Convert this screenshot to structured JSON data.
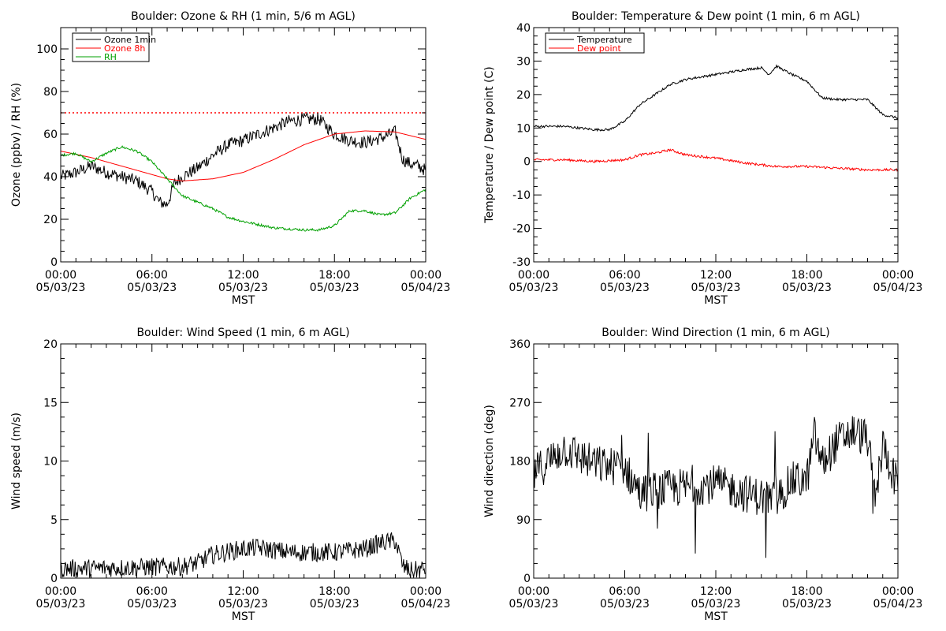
{
  "chart_data": [
    {
      "type": "line",
      "title": "Boulder: Ozone & RH (1 min, 5/6 m AGL)",
      "xlabel": "MST",
      "ylabel": "Ozone (ppbv) / RH (%)",
      "xlim": [
        "05/03/23 00:00",
        "05/04/23 00:00"
      ],
      "ylim": [
        0,
        110
      ],
      "yticks": [
        0,
        20,
        40,
        60,
        80,
        100
      ],
      "xticks": [
        {
          "time": "00:00",
          "date": "05/03/23"
        },
        {
          "time": "06:00",
          "date": "05/03/23"
        },
        {
          "time": "12:00",
          "date": "05/03/23"
        },
        {
          "time": "18:00",
          "date": "05/03/23"
        },
        {
          "time": "00:00",
          "date": "05/04/23"
        }
      ],
      "legend": {
        "placement": "top-left"
      },
      "reference_lines": [
        {
          "y": 70,
          "color": "#ff0000",
          "style": "dotted"
        }
      ],
      "series": [
        {
          "name": "Ozone 1min",
          "color": "#000000",
          "noise": 3,
          "x": [
            "05/03/23 00:00",
            "05/03/23 01:00",
            "05/03/23 02:00",
            "05/03/23 03:00",
            "05/03/23 04:00",
            "05/03/23 05:00",
            "05/03/23 06:00",
            "05/03/23 06:30",
            "05/03/23 07:00",
            "05/03/23 07:30",
            "05/03/23 08:00",
            "05/03/23 09:00",
            "05/03/23 10:00",
            "05/03/23 11:00",
            "05/03/23 12:00",
            "05/03/23 13:00",
            "05/03/23 14:00",
            "05/03/23 15:00",
            "05/03/23 16:00",
            "05/03/23 17:00",
            "05/03/23 18:00",
            "05/03/23 19:00",
            "05/03/23 20:00",
            "05/03/23 21:00",
            "05/03/23 22:00",
            "05/03/23 22:30",
            "05/03/23 23:00",
            "05/03/23 23:30",
            "05/04/23 00:00"
          ],
          "y": [
            40,
            42,
            45,
            42,
            40,
            38,
            33,
            28,
            27,
            37,
            40,
            44,
            50,
            55,
            57,
            60,
            63,
            66,
            67,
            67,
            60,
            57,
            56,
            58,
            61,
            48,
            46,
            45,
            43
          ]
        },
        {
          "name": "Ozone 8h",
          "color": "#ff0000",
          "noise": 0,
          "x": [
            "05/03/23 00:00",
            "05/03/23 02:00",
            "05/03/23 04:00",
            "05/03/23 06:00",
            "05/03/23 07:00",
            "05/03/23 08:00",
            "05/03/23 10:00",
            "05/03/23 12:00",
            "05/03/23 14:00",
            "05/03/23 16:00",
            "05/03/23 18:00",
            "05/03/23 20:00",
            "05/03/23 22:00",
            "05/04/23 00:00"
          ],
          "y": [
            52,
            49,
            45,
            41,
            39,
            38,
            39,
            42,
            48,
            55,
            60,
            61.5,
            61,
            57.5
          ]
        },
        {
          "name": "RH",
          "color": "#00a000",
          "noise": 0.6,
          "x": [
            "05/03/23 00:00",
            "05/03/23 01:00",
            "05/03/23 02:00",
            "05/03/23 03:00",
            "05/03/23 04:00",
            "05/03/23 05:00",
            "05/03/23 06:00",
            "05/03/23 07:00",
            "05/03/23 08:00",
            "05/03/23 09:00",
            "05/03/23 10:00",
            "05/03/23 11:00",
            "05/03/23 12:00",
            "05/03/23 14:00",
            "05/03/23 16:00",
            "05/03/23 17:00",
            "05/03/23 18:00",
            "05/03/23 19:00",
            "05/03/23 20:00",
            "05/03/23 21:00",
            "05/03/23 22:00",
            "05/03/23 23:00",
            "05/04/23 00:00"
          ],
          "y": [
            50,
            51,
            47,
            51,
            54,
            52,
            47,
            39,
            31,
            28,
            25,
            21,
            19,
            16,
            15,
            15,
            17,
            24,
            24,
            22,
            23,
            30,
            34
          ]
        }
      ]
    },
    {
      "type": "line",
      "title": "Boulder: Temperature & Dew point (1 min, 6 m AGL)",
      "xlabel": "MST",
      "ylabel": "Temperature / Dew point (C)",
      "xlim": [
        "05/03/23 00:00",
        "05/04/23 00:00"
      ],
      "ylim": [
        -30,
        40
      ],
      "yticks": [
        -30,
        -20,
        -10,
        0,
        10,
        20,
        30,
        40
      ],
      "xticks": [
        {
          "time": "00:00",
          "date": "05/03/23"
        },
        {
          "time": "06:00",
          "date": "05/03/23"
        },
        {
          "time": "12:00",
          "date": "05/03/23"
        },
        {
          "time": "18:00",
          "date": "05/03/23"
        },
        {
          "time": "00:00",
          "date": "05/04/23"
        }
      ],
      "legend": {
        "placement": "top-left"
      },
      "series": [
        {
          "name": "Temperature",
          "color": "#000000",
          "noise": 0.35,
          "x": [
            "05/03/23 00:00",
            "05/03/23 02:00",
            "05/03/23 04:00",
            "05/03/23 05:00",
            "05/03/23 06:00",
            "05/03/23 07:00",
            "05/03/23 08:00",
            "05/03/23 09:00",
            "05/03/23 10:00",
            "05/03/23 12:00",
            "05/03/23 14:00",
            "05/03/23 15:00",
            "05/03/23 15:30",
            "05/03/23 16:00",
            "05/03/23 17:00",
            "05/03/23 18:00",
            "05/03/23 19:00",
            "05/03/23 20:00",
            "05/03/23 22:00",
            "05/03/23 23:00",
            "05/04/23 00:00"
          ],
          "y": [
            10.5,
            10.5,
            9.5,
            9.5,
            12,
            17,
            20,
            23,
            24.5,
            26,
            27.5,
            28,
            26,
            28.5,
            26,
            24,
            19,
            18.5,
            18.5,
            14,
            13
          ]
        },
        {
          "name": "Dew point",
          "color": "#ff0000",
          "noise": 0.35,
          "x": [
            "05/03/23 00:00",
            "05/03/23 02:00",
            "05/03/23 04:00",
            "05/03/23 06:00",
            "05/03/23 07:00",
            "05/03/23 08:00",
            "05/03/23 09:00",
            "05/03/23 10:00",
            "05/03/23 12:00",
            "05/03/23 14:00",
            "05/03/23 16:00",
            "05/03/23 18:00",
            "05/03/23 20:00",
            "05/03/23 22:00",
            "05/04/23 00:00"
          ],
          "y": [
            0.5,
            0.5,
            0,
            0.5,
            2,
            2.5,
            3.5,
            2,
            1,
            -0.5,
            -1.5,
            -1.5,
            -2,
            -2.5,
            -2.5
          ]
        }
      ]
    },
    {
      "type": "line",
      "title": "Boulder: Wind Speed (1 min, 6 m AGL)",
      "xlabel": "MST",
      "ylabel": "Wind speed (m/s)",
      "xlim": [
        "05/03/23 00:00",
        "05/04/23 00:00"
      ],
      "ylim": [
        0,
        20
      ],
      "yticks": [
        0,
        5,
        10,
        15,
        20
      ],
      "xticks": [
        {
          "time": "00:00",
          "date": "05/03/23"
        },
        {
          "time": "06:00",
          "date": "05/03/23"
        },
        {
          "time": "12:00",
          "date": "05/03/23"
        },
        {
          "time": "18:00",
          "date": "05/03/23"
        },
        {
          "time": "00:00",
          "date": "05/04/23"
        }
      ],
      "series": [
        {
          "color": "#000000",
          "noise": 0.8,
          "floor": 0,
          "x": [
            "05/03/23 00:00",
            "05/03/23 04:00",
            "05/03/23 08:00",
            "05/03/23 09:00",
            "05/03/23 10:00",
            "05/03/23 12:00",
            "05/03/23 13:00",
            "05/03/23 15:00",
            "05/03/23 18:00",
            "05/03/23 20:00",
            "05/03/23 21:00",
            "05/03/23 22:00",
            "05/03/23 22:30",
            "05/03/23 23:00",
            "05/04/23 00:00"
          ],
          "y": [
            0.8,
            0.9,
            1,
            1.3,
            2,
            2.5,
            2.6,
            2.2,
            2.2,
            2.5,
            3,
            3.2,
            1,
            0.6,
            0.8
          ]
        }
      ]
    },
    {
      "type": "line",
      "title": "Boulder: Wind Direction (1 min, 6 m AGL)",
      "xlabel": "MST",
      "ylabel": "Wind direction (deg)",
      "xlim": [
        "05/03/23 00:00",
        "05/04/23 00:00"
      ],
      "ylim": [
        0,
        360
      ],
      "yticks": [
        0,
        90,
        180,
        270,
        360
      ],
      "xticks": [
        {
          "time": "00:00",
          "date": "05/03/23"
        },
        {
          "time": "06:00",
          "date": "05/03/23"
        },
        {
          "time": "12:00",
          "date": "05/03/23"
        },
        {
          "time": "18:00",
          "date": "05/03/23"
        },
        {
          "time": "00:00",
          "date": "05/04/23"
        }
      ],
      "series": [
        {
          "color": "#000000",
          "noise": 30,
          "floor": 0,
          "ceil": 360,
          "x": [
            "05/03/23 00:00",
            "05/03/23 02:00",
            "05/03/23 04:00",
            "05/03/23 06:00",
            "05/03/23 07:00",
            "05/03/23 08:00",
            "05/03/23 10:00",
            "05/03/23 12:00",
            "05/03/23 14:00",
            "05/03/23 16:00",
            "05/03/23 17:00",
            "05/03/23 18:00",
            "05/03/23 18:30",
            "05/03/23 19:00",
            "05/03/23 20:00",
            "05/03/23 21:00",
            "05/03/23 22:00",
            "05/03/23 22:30",
            "05/03/23 23:00",
            "05/04/23 00:00"
          ],
          "y": [
            160,
            200,
            175,
            170,
            130,
            135,
            140,
            145,
            130,
            120,
            150,
            150,
            220,
            175,
            210,
            225,
            215,
            120,
            205,
            140
          ]
        }
      ]
    }
  ]
}
